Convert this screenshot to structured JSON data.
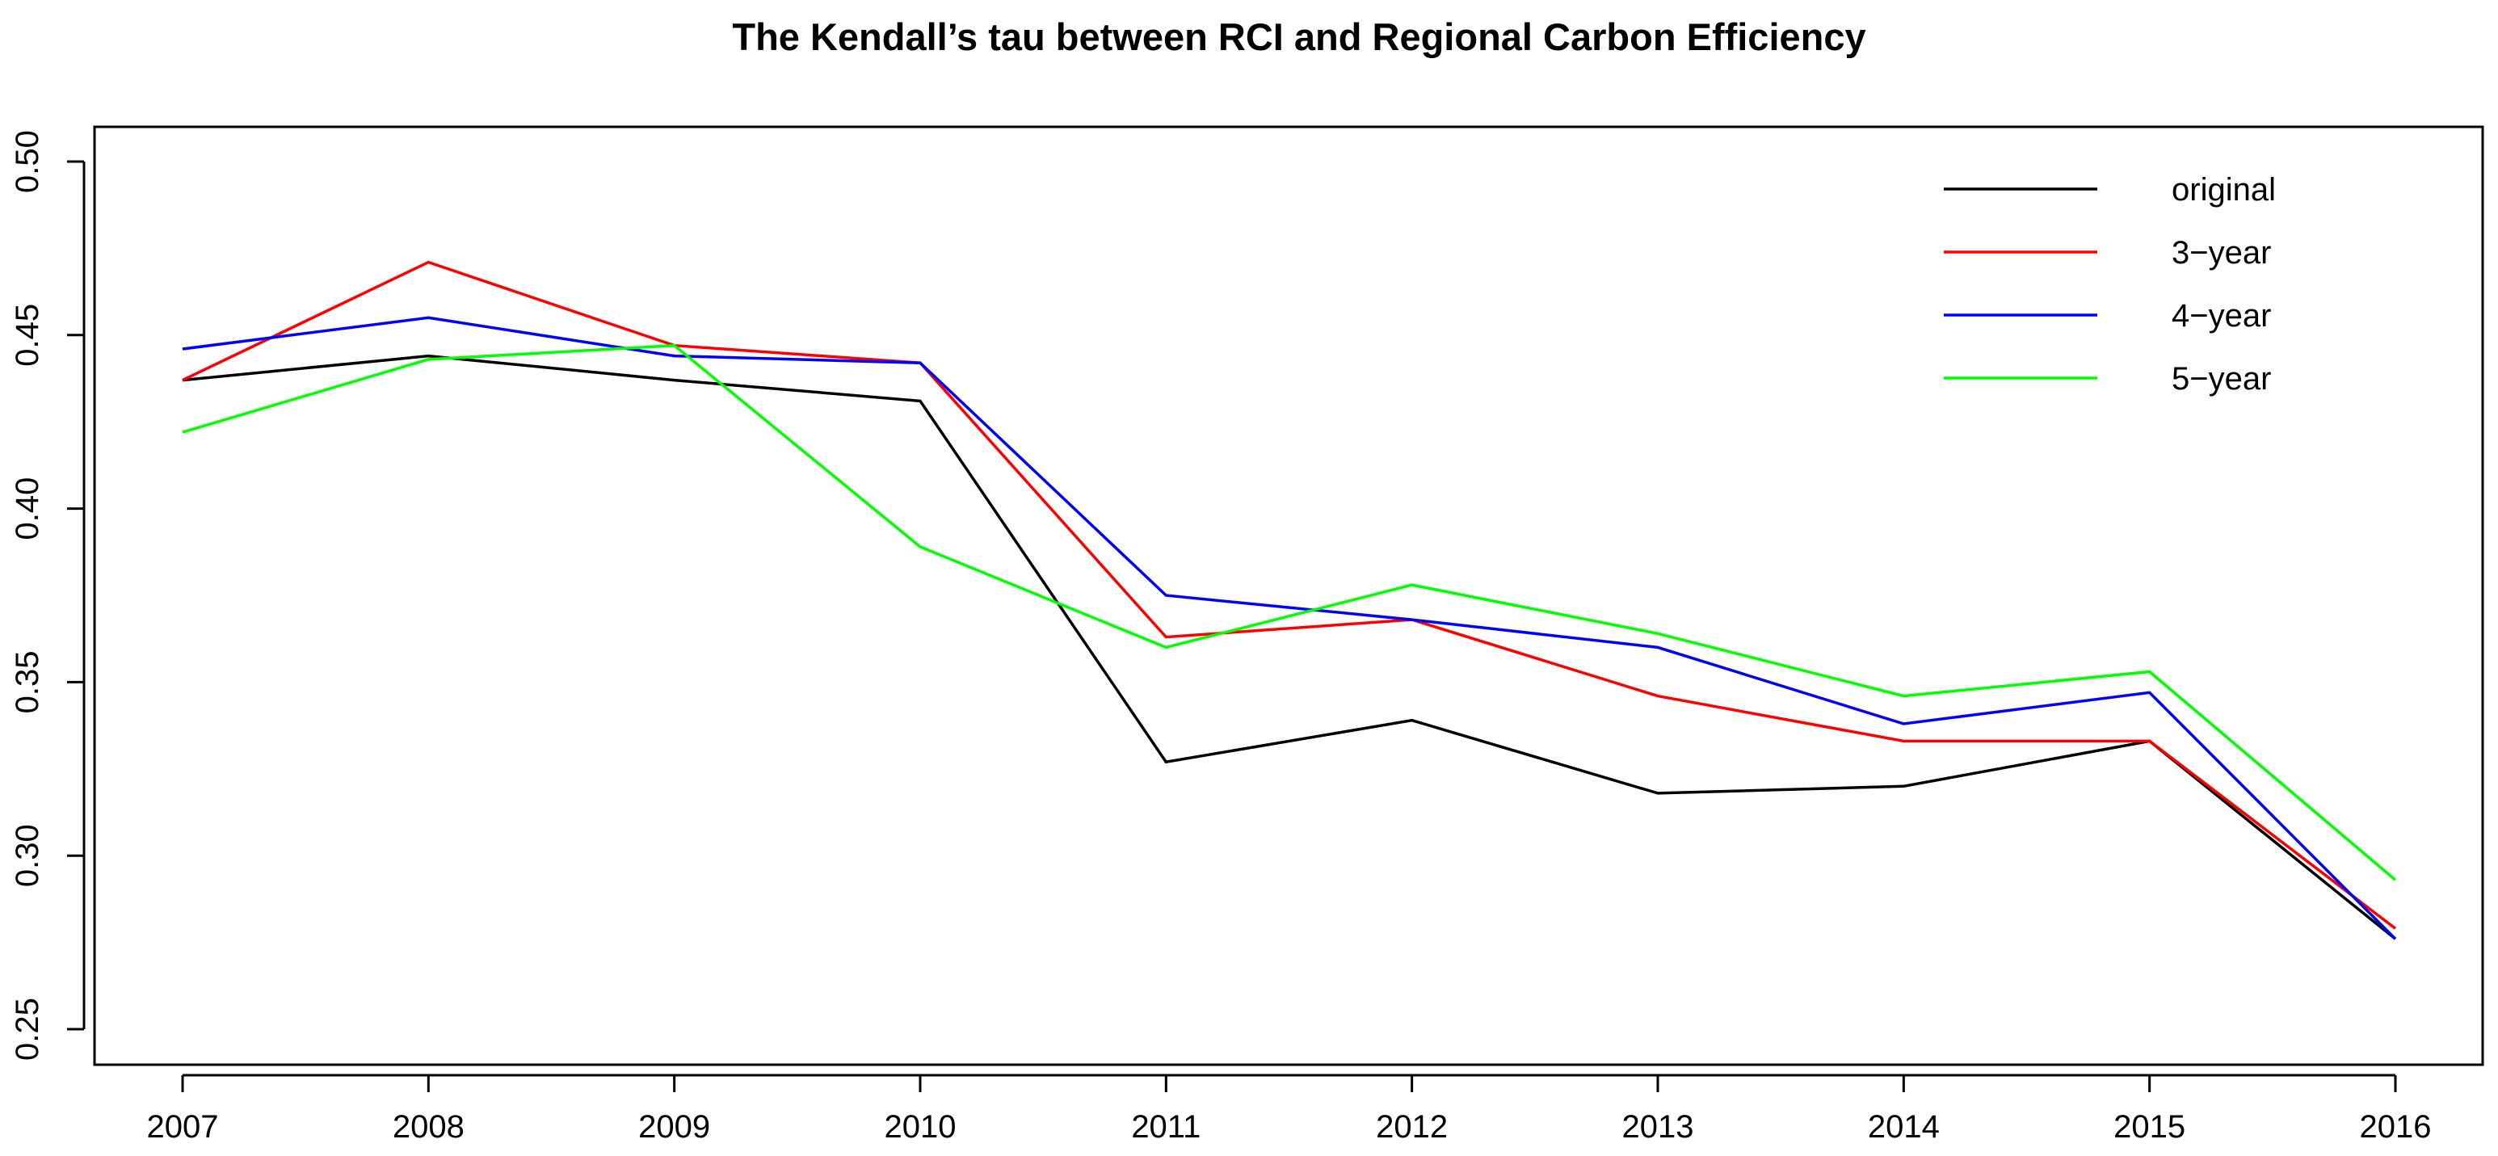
{
  "chart_data": {
    "type": "line",
    "title": "The Kendall’s tau between RCI and Regional Carbon Efficiency",
    "xlabel": "",
    "ylabel": "",
    "categories": [
      "2007",
      "2008",
      "2009",
      "2010",
      "2011",
      "2012",
      "2013",
      "2014",
      "2015",
      "2016"
    ],
    "ylim": [
      0.25,
      0.5
    ],
    "y_ticks": [
      "0.25",
      "0.30",
      "0.35",
      "0.40",
      "0.45",
      "0.50"
    ],
    "grid": false,
    "legend_position": "top-right",
    "series": [
      {
        "name": "original",
        "color": "#000000",
        "values": [
          0.437,
          0.444,
          0.437,
          0.431,
          0.327,
          0.339,
          0.318,
          0.32,
          0.333,
          0.276
        ]
      },
      {
        "name": "3−year",
        "color": "#ff0000",
        "values": [
          0.437,
          0.471,
          0.447,
          0.442,
          0.363,
          0.368,
          0.346,
          0.333,
          0.333,
          0.279
        ]
      },
      {
        "name": "4−year",
        "color": "#0000ff",
        "values": [
          0.446,
          0.455,
          0.444,
          0.442,
          0.375,
          0.368,
          0.36,
          0.338,
          0.347,
          0.276
        ]
      },
      {
        "name": "5−year",
        "color": "#00ff00",
        "values": [
          0.422,
          0.443,
          0.447,
          0.389,
          0.36,
          0.378,
          0.364,
          0.346,
          0.353,
          0.293
        ]
      }
    ]
  }
}
